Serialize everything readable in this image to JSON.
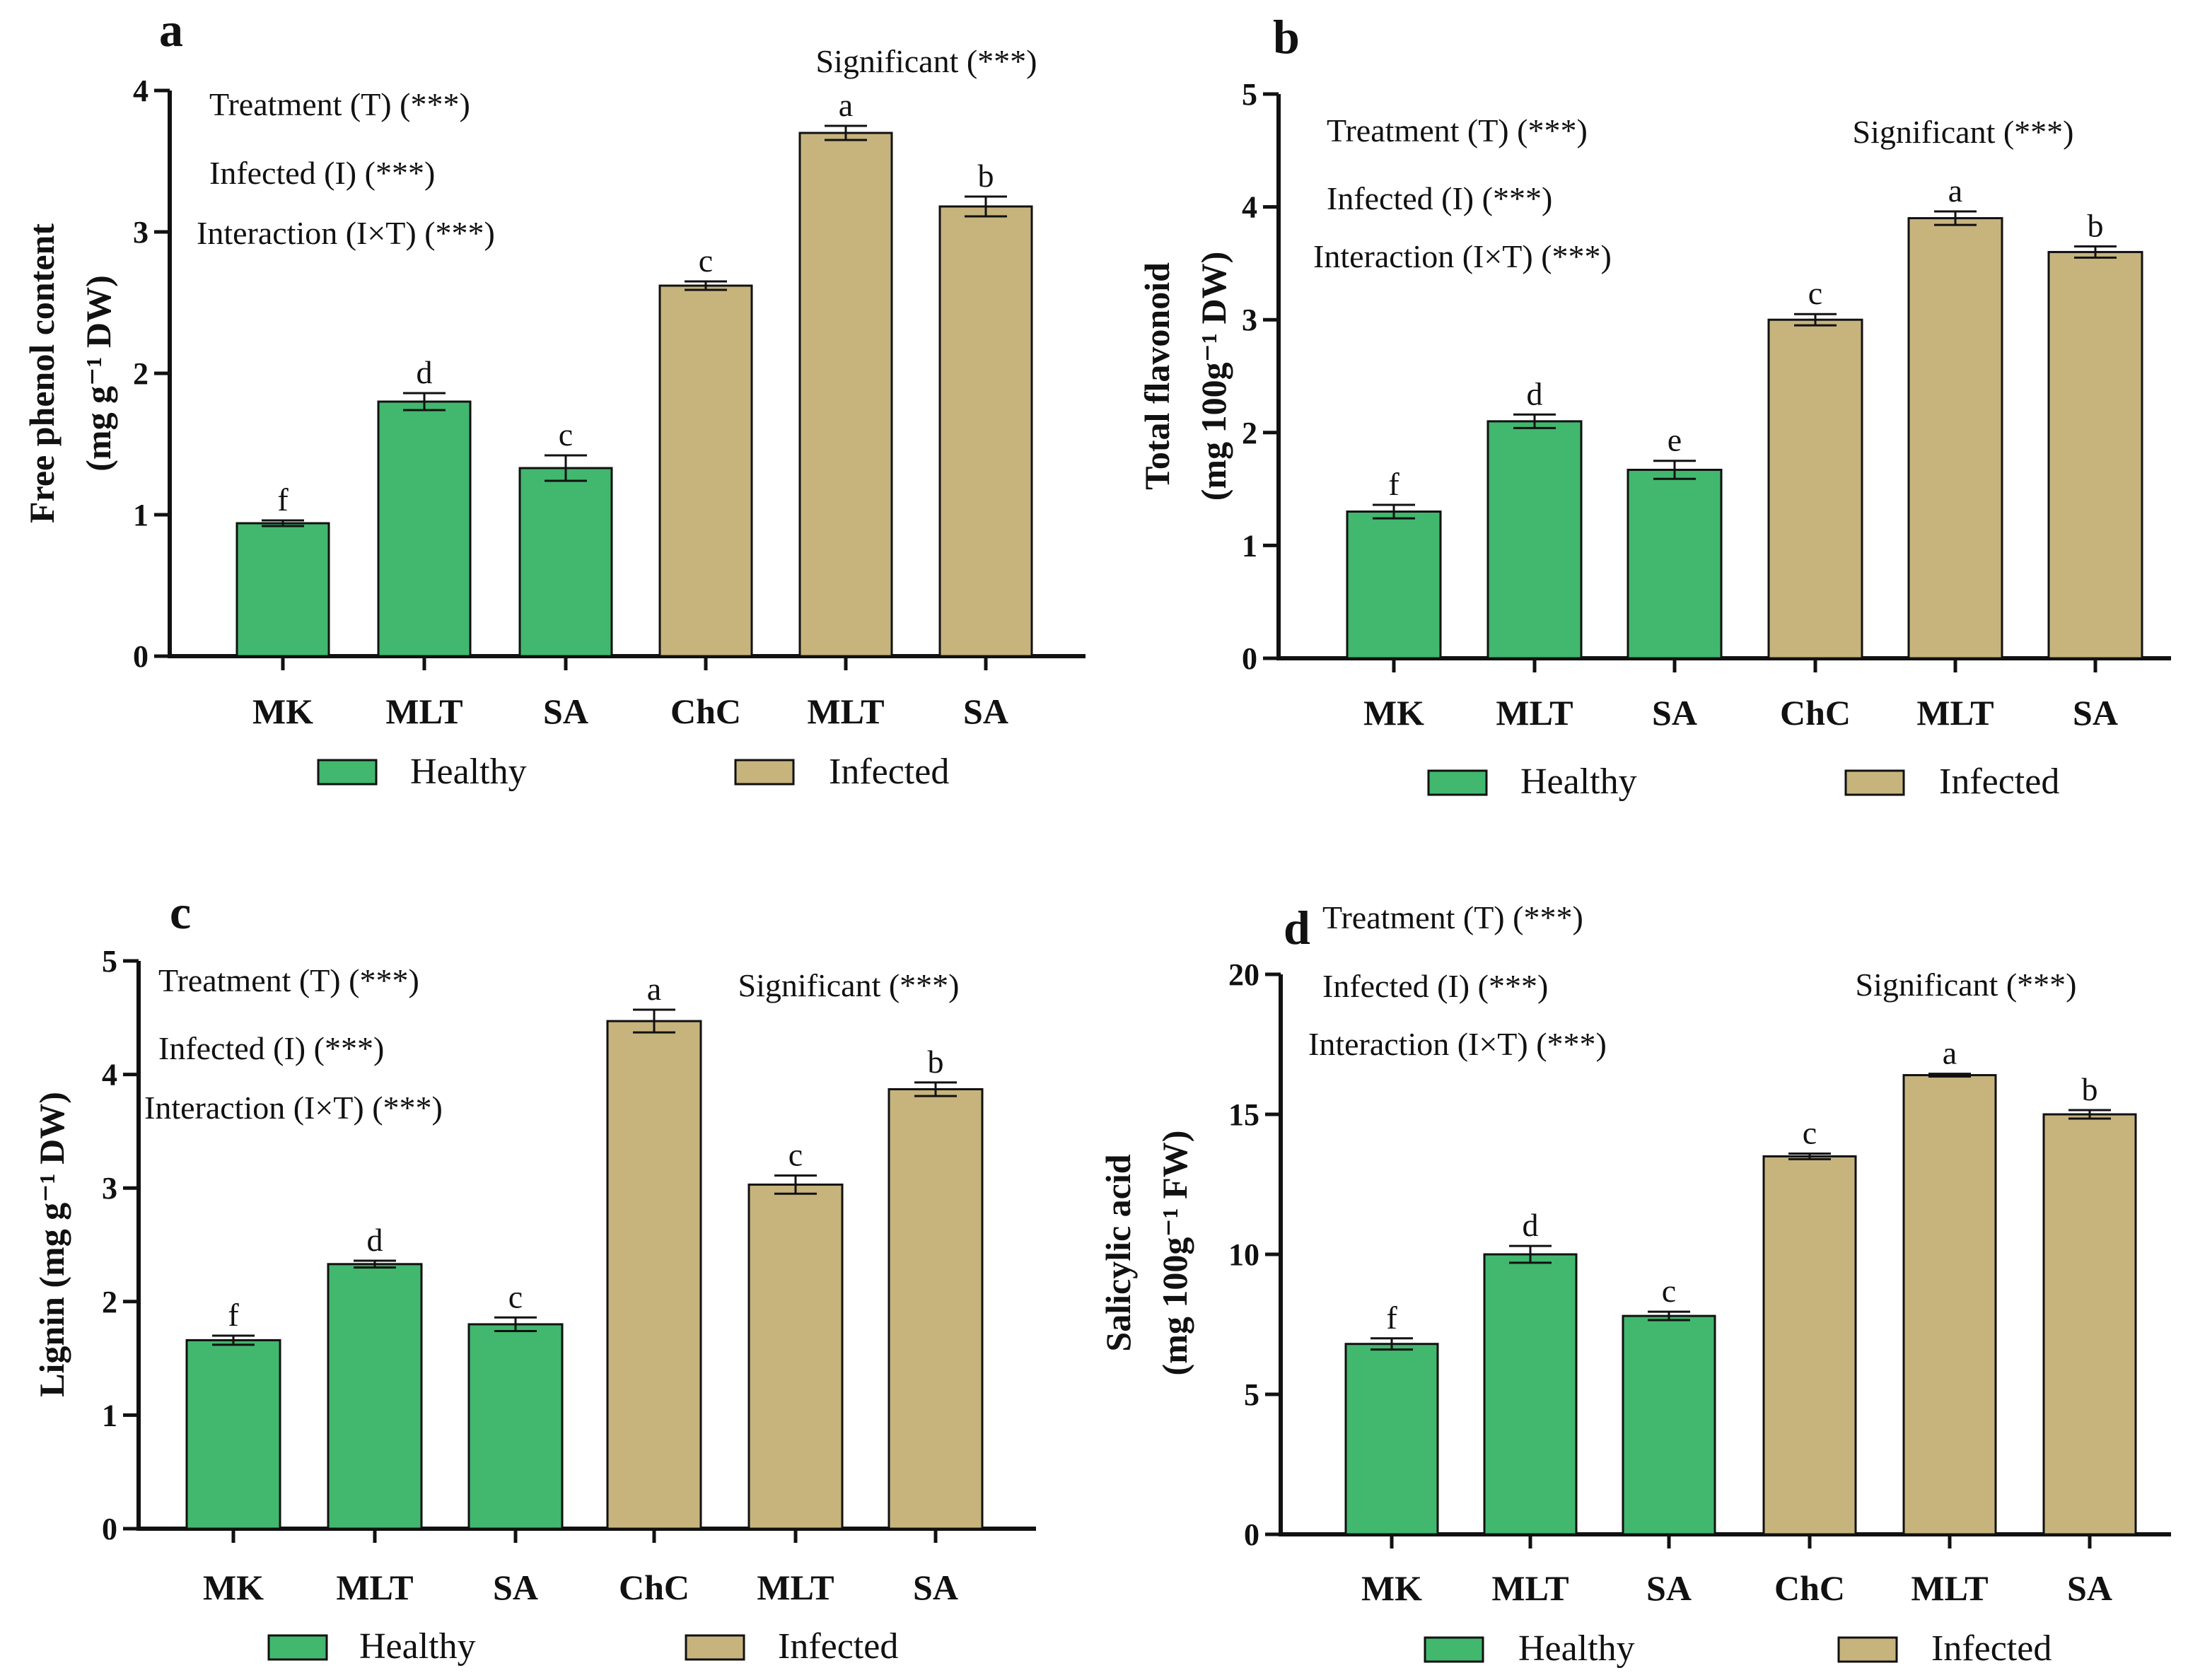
{
  "colors": {
    "healthy": "#41b86e",
    "infected": "#c7b47d",
    "axis": "#111111"
  },
  "legend": {
    "healthy": "Healthy",
    "infected": "Infected"
  },
  "chart_data": [
    {
      "panel": "a",
      "type": "bar",
      "categories": [
        "MK",
        "MLT",
        "SA",
        "ChC",
        "MLT",
        "SA"
      ],
      "groups": [
        "Healthy",
        "Healthy",
        "Healthy",
        "Infected",
        "Infected",
        "Infected"
      ],
      "values": [
        0.94,
        1.8,
        1.33,
        2.62,
        3.7,
        3.18
      ],
      "errors": [
        0.02,
        0.06,
        0.09,
        0.03,
        0.05,
        0.07
      ],
      "letters": [
        "f",
        "d",
        "c",
        "c",
        "a",
        "b"
      ],
      "ylim": [
        0,
        4
      ],
      "yticks": [
        "0",
        "1",
        "2",
        "3",
        "4"
      ],
      "ylabel_lines": [
        "Free phenol content",
        "(mg g⁻¹ DW)"
      ],
      "annotations": [
        "Treatment (T) (***)",
        "Infected (I) (***)",
        "Interaction (I×T) (***)"
      ],
      "significance": "Significant (***)"
    },
    {
      "panel": "b",
      "type": "bar",
      "categories": [
        "MK",
        "MLT",
        "SA",
        "ChC",
        "MLT",
        "SA"
      ],
      "groups": [
        "Healthy",
        "Healthy",
        "Healthy",
        "Infected",
        "Infected",
        "Infected"
      ],
      "values": [
        1.3,
        2.1,
        1.67,
        3.0,
        3.9,
        3.6
      ],
      "errors": [
        0.06,
        0.06,
        0.08,
        0.05,
        0.06,
        0.05
      ],
      "letters": [
        "f",
        "d",
        "e",
        "c",
        "a",
        "b"
      ],
      "ylim": [
        0,
        5
      ],
      "yticks": [
        "0",
        "1",
        "2",
        "3",
        "4",
        "5"
      ],
      "ylabel_lines": [
        "Total flavonoid",
        "(mg 100g⁻¹ DW)"
      ],
      "annotations": [
        "Treatment (T) (***)",
        "Infected (I) (***)",
        "Interaction (I×T) (***)"
      ],
      "significance": "Significant (***)"
    },
    {
      "panel": "c",
      "type": "bar",
      "categories": [
        "MK",
        "MLT",
        "SA",
        "ChC",
        "MLT",
        "SA"
      ],
      "groups": [
        "Healthy",
        "Healthy",
        "Healthy",
        "Infected",
        "Infected",
        "Infected"
      ],
      "values": [
        1.66,
        2.33,
        1.8,
        4.47,
        3.03,
        3.87
      ],
      "errors": [
        0.04,
        0.03,
        0.06,
        0.1,
        0.08,
        0.06
      ],
      "letters": [
        "f",
        "d",
        "c",
        "a",
        "c",
        "b"
      ],
      "ylim": [
        0,
        5
      ],
      "yticks": [
        "0",
        "1",
        "2",
        "3",
        "4",
        "5"
      ],
      "ylabel_lines": [
        "Lignin (mg g⁻¹ DW)"
      ],
      "annotations": [
        "Treatment (T) (***)",
        "Infected (I) (***)",
        "Interaction (I×T) (***)"
      ],
      "significance": "Significant (***)"
    },
    {
      "panel": "d",
      "type": "bar",
      "categories": [
        "MK",
        "MLT",
        "SA",
        "ChC",
        "MLT",
        "SA"
      ],
      "groups": [
        "Healthy",
        "Healthy",
        "Healthy",
        "Infected",
        "Infected",
        "Infected"
      ],
      "values": [
        6.8,
        10.0,
        7.8,
        13.5,
        16.4,
        15.0
      ],
      "errors": [
        0.2,
        0.3,
        0.15,
        0.1,
        0.05,
        0.15
      ],
      "letters": [
        "f",
        "d",
        "c",
        "c",
        "a",
        "b"
      ],
      "ylim": [
        0,
        20
      ],
      "yticks": [
        "0",
        "5",
        "10",
        "15",
        "20"
      ],
      "ylabel_lines": [
        "Salicylic acid",
        "(mg 100g⁻¹ FW)"
      ],
      "annotations": [
        "Treatment (T) (***)",
        "Infected (I) (***)",
        "Interaction (I×T) (***)"
      ],
      "significance": "Significant (***)"
    }
  ]
}
